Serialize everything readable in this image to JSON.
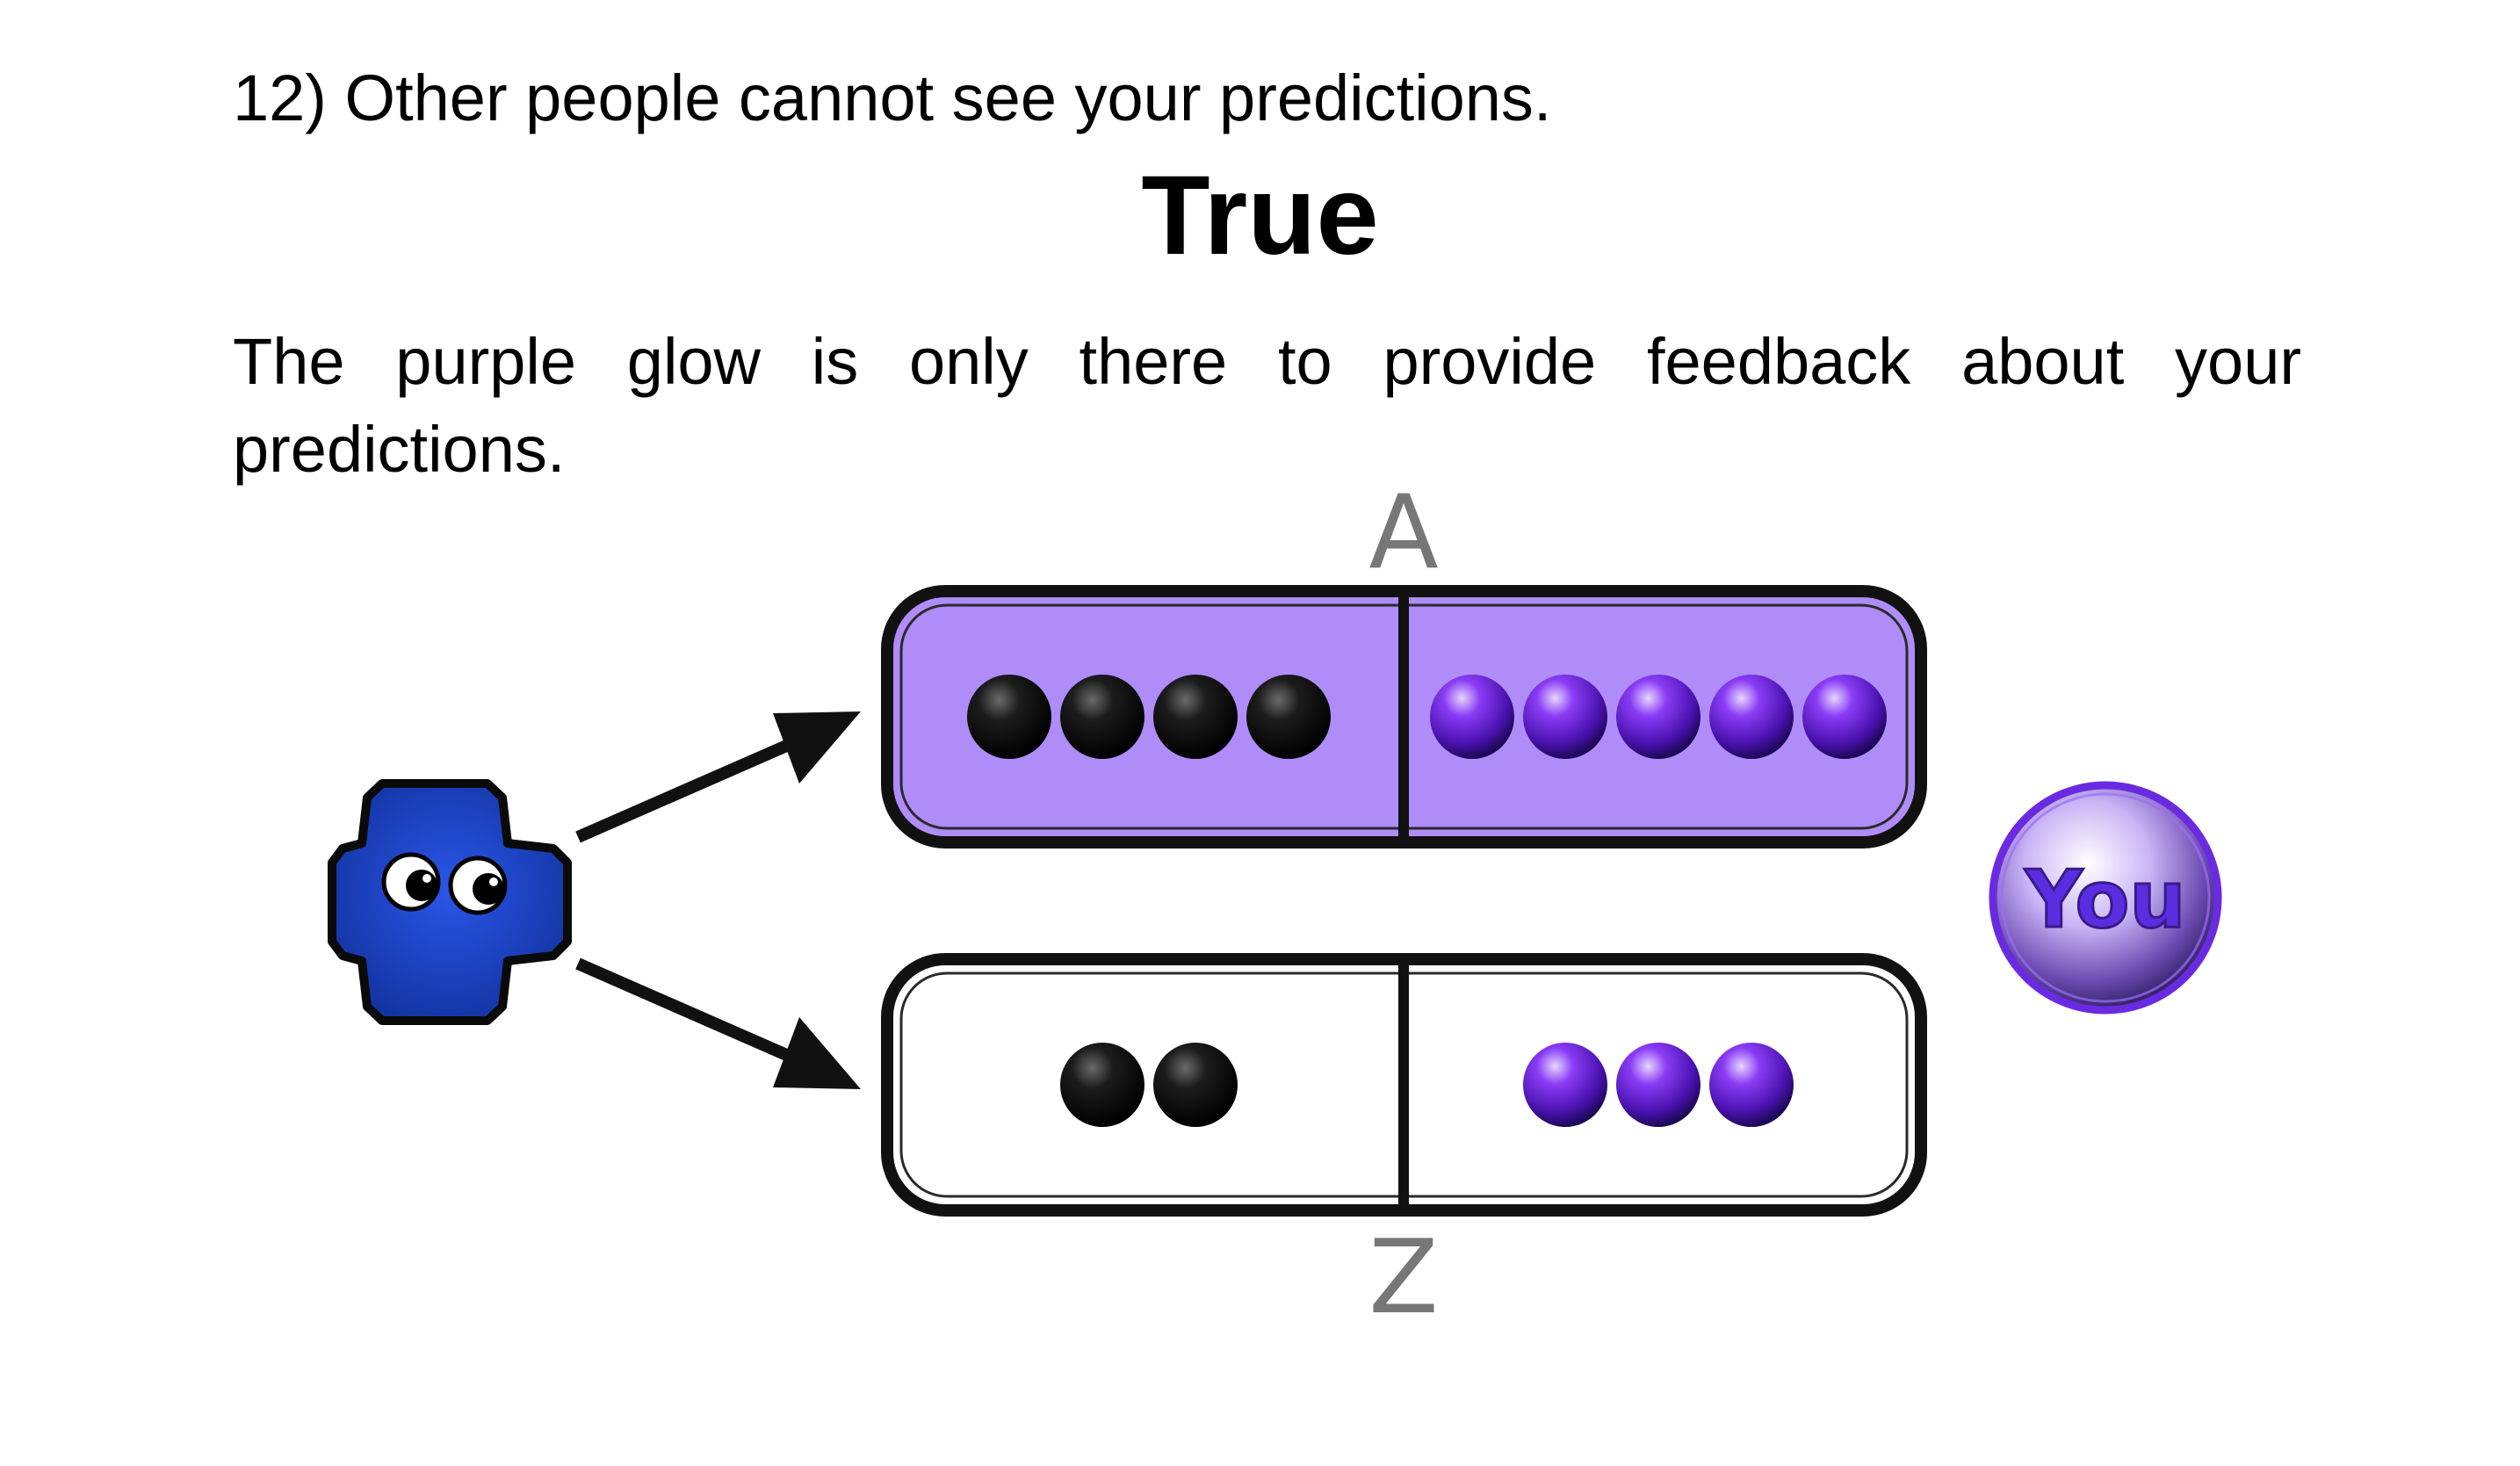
{
  "question": "12) Other people cannot see your predictions.",
  "answer": "True",
  "explanation": "The purple glow is only there to provide feedback about your predictions.",
  "diagram": {
    "options": [
      {
        "label": "A",
        "highlighted": true,
        "black_count": 4,
        "purple_count": 5
      },
      {
        "label": "Z",
        "highlighted": false,
        "black_count": 2,
        "purple_count": 3
      }
    ],
    "player_token": "You",
    "agent_icon": "blue-cross-creature-icon",
    "colors": {
      "highlight_fill": "#b08cf9",
      "purple_ball": "#6a1fe8",
      "black_ball": "#000000",
      "agent_blue": "#1a3fc0",
      "label_gray": "#777777"
    }
  }
}
